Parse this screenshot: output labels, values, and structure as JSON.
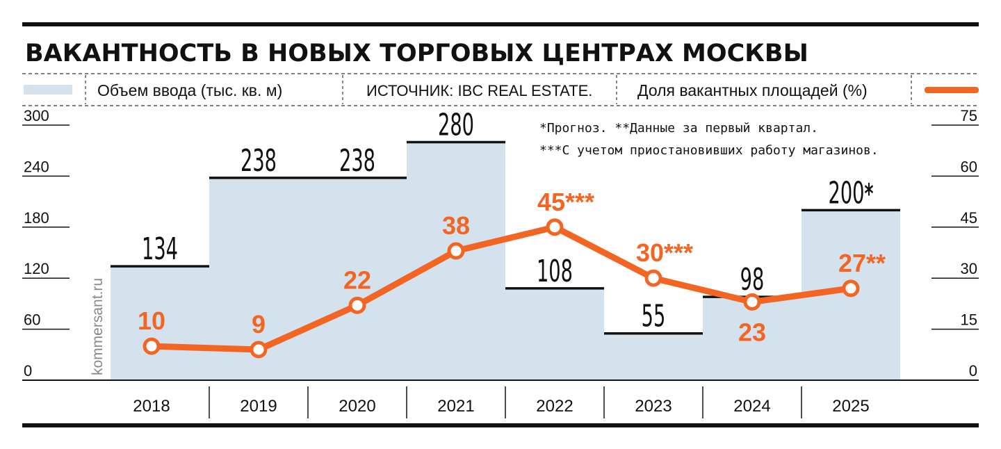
{
  "title": "ВАКАНТНОСТЬ В НОВЫХ ТОРГОВЫХ ЦЕНТРАХ МОСКВЫ",
  "legend": {
    "bars_label": "Объем ввода (тыс. кв. м)",
    "source": "ИСТОЧНИК: IBC REAL ESTATE.",
    "line_label": "Доля вакантных площадей (%)"
  },
  "notes": {
    "line1": "*Прогноз. **Данные за первый квартал.",
    "line2": "***С учетом приостановивших работу магазинов."
  },
  "watermark": "kommersant.ru",
  "colors": {
    "bar": "#d4e2ee",
    "line": "#f26522",
    "text": "#111111"
  },
  "chart_data": {
    "type": "bar",
    "categories": [
      "2018",
      "2019",
      "2020",
      "2021",
      "2022",
      "2023",
      "2024",
      "2025"
    ],
    "series": [
      {
        "name": "Объем ввода (тыс. кв. м)",
        "type": "bar",
        "axis": "left",
        "values": [
          134,
          238,
          238,
          280,
          108,
          55,
          98,
          200
        ],
        "labels": [
          "134",
          "238",
          "238",
          "280",
          "108",
          "55",
          "98",
          "200*"
        ]
      },
      {
        "name": "Доля вакантных площадей (%)",
        "type": "line",
        "axis": "right",
        "values": [
          10,
          9,
          22,
          38,
          45,
          30,
          23,
          27
        ],
        "labels": [
          "10",
          "9",
          "22",
          "38",
          "45***",
          "30***",
          "23",
          "27**"
        ]
      }
    ],
    "y_left": {
      "ticks": [
        "0",
        "60",
        "120",
        "180",
        "240",
        "300"
      ],
      "range": [
        0,
        300
      ]
    },
    "y_right": {
      "ticks": [
        "0",
        "15",
        "30",
        "45",
        "60",
        "75"
      ],
      "range": [
        0,
        75
      ]
    },
    "grid": false
  }
}
